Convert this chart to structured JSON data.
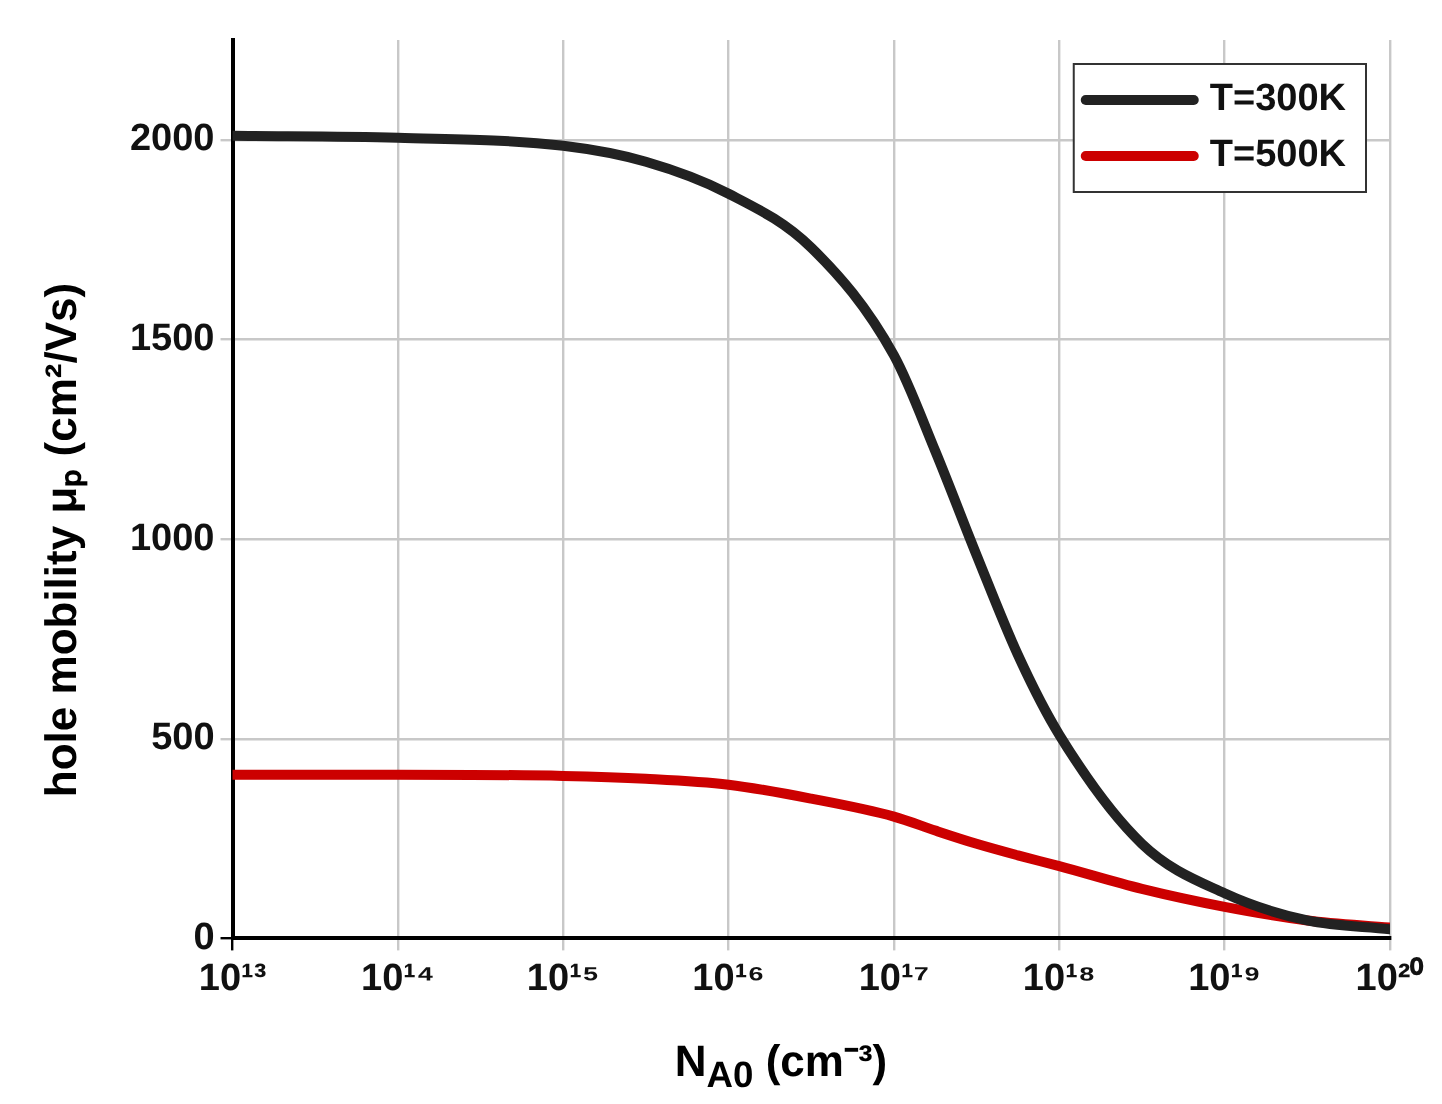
{
  "chart_data": {
    "type": "line",
    "xlabel": "N$_{A0}$ (cm⁻³)",
    "ylabel": "hole mobility μₚ (cm²/Vs)",
    "x": [
      10000000000000.0,
      100000000000000.0,
      1000000000000000.0,
      3160000000000000.0,
      1e+16,
      3.16e+16,
      1e+17,
      1.78e+17,
      3.16e+17,
      5.62e+17,
      1e+18,
      3.16e+18,
      1e+19,
      3.16e+19,
      1e+20
    ],
    "series": [
      {
        "name": "T=300K",
        "color": "#222222",
        "values": [
          2010,
          2005,
          1985,
          1945,
          1865,
          1730,
          1460,
          1220,
          960,
          710,
          510,
          237,
          113,
          45,
          23
        ]
      },
      {
        "name": "T=500K",
        "color": "#cc0000",
        "values": [
          410,
          410,
          407,
          400,
          385,
          350,
          305,
          270,
          237,
          208,
          181,
          124,
          79,
          45,
          27
        ]
      }
    ],
    "log": "x",
    "xlim": [
      10000000000000.0,
      1e+20
    ],
    "xticks": [
      {
        "value": 10000000000000.0,
        "label": "10¹³"
      },
      {
        "value": 100000000000000.0,
        "label": "10¹⁴"
      },
      {
        "value": 1000000000000000.0,
        "label": "10¹⁵"
      },
      {
        "value": 1e+16,
        "label": "10¹⁶"
      },
      {
        "value": 1e+17,
        "label": "10¹⁷"
      },
      {
        "value": 1e+18,
        "label": "10¹⁸"
      },
      {
        "value": 1e+19,
        "label": "10¹⁹"
      },
      {
        "value": 1e+20,
        "label": "10²⁰"
      }
    ],
    "ylim": [
      0,
      2250
    ],
    "yticks": [
      0,
      500,
      1000,
      1500,
      2000
    ],
    "grid": true,
    "legend": "top right",
    "marker": "none",
    "line_style": "solid"
  }
}
